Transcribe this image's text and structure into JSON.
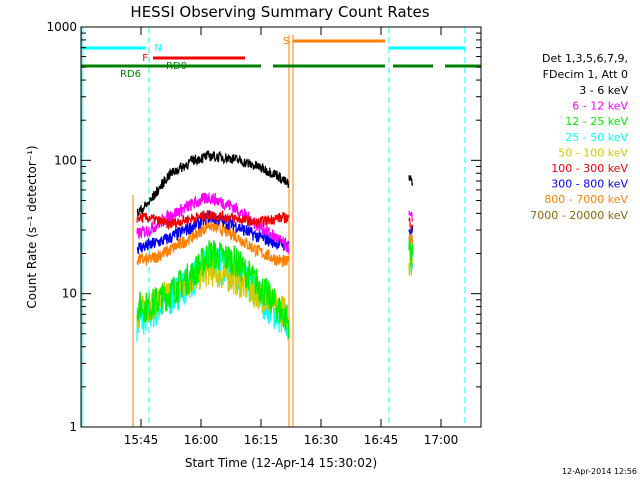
{
  "chart_data": {
    "type": "line",
    "title": "HESSI Observing Summary Count Rates",
    "xlabel": "Start Time (12-Apr-14 15:30:02)",
    "ylabel": "Count Rate (s⁻¹ detector⁻¹)",
    "y_scale": "log",
    "ylim": [
      1,
      1000
    ],
    "xlim": [
      "15:30",
      "17:10"
    ],
    "x_ticks": [
      "15:45",
      "16:00",
      "16:15",
      "16:30",
      "16:45",
      "17:00"
    ],
    "y_ticks": [
      "1",
      "10",
      "100",
      "1000"
    ],
    "legend": {
      "header": [
        "Det 1,3,5,6,7,9,",
        "FDecim 1, Att 0"
      ],
      "placement": "right"
    },
    "series": [
      {
        "name": "3 - 6 keV",
        "color": "#000000",
        "points": [
          [
            "15:44",
            40
          ],
          [
            "15:47",
            48
          ],
          [
            "15:52",
            78
          ],
          [
            "15:58",
            100
          ],
          [
            "16:02",
            108
          ],
          [
            "16:08",
            103
          ],
          [
            "16:14",
            90
          ],
          [
            "16:19",
            78
          ],
          [
            "16:22",
            65
          ],
          [
            "16:52",
            72
          ],
          [
            "16:53",
            70
          ]
        ]
      },
      {
        "name": "6 - 12 keV",
        "color": "#ff00ff",
        "points": [
          [
            "15:44",
            28
          ],
          [
            "15:47",
            30
          ],
          [
            "15:52",
            38
          ],
          [
            "15:58",
            47
          ],
          [
            "16:02",
            53
          ],
          [
            "16:08",
            45
          ],
          [
            "16:14",
            33
          ],
          [
            "16:19",
            26
          ],
          [
            "16:22",
            22
          ],
          [
            "16:52",
            38
          ],
          [
            "16:53",
            36
          ]
        ]
      },
      {
        "name": "12 - 25 keV",
        "color": "#00ee00",
        "points": [
          [
            "15:44",
            8
          ],
          [
            "15:47",
            8
          ],
          [
            "15:52",
            10
          ],
          [
            "15:58",
            14
          ],
          [
            "16:02",
            20
          ],
          [
            "16:08",
            18
          ],
          [
            "16:14",
            12
          ],
          [
            "16:19",
            8
          ],
          [
            "16:22",
            6
          ],
          [
            "16:52",
            22
          ],
          [
            "16:53",
            20
          ]
        ]
      },
      {
        "name": "25 - 50 keV",
        "color": "#00ffff",
        "points": [
          [
            "15:44",
            6
          ],
          [
            "15:47",
            7
          ],
          [
            "15:52",
            9
          ],
          [
            "15:58",
            13
          ],
          [
            "16:02",
            17
          ],
          [
            "16:08",
            15
          ],
          [
            "16:14",
            10
          ],
          [
            "16:19",
            7
          ],
          [
            "16:22",
            6
          ],
          [
            "16:52",
            20
          ],
          [
            "16:53",
            19
          ]
        ]
      },
      {
        "name": "50 - 100 keV",
        "color": "#d4c800",
        "points": [
          [
            "15:44",
            7
          ],
          [
            "15:47",
            8
          ],
          [
            "15:52",
            10
          ],
          [
            "15:58",
            13
          ],
          [
            "16:02",
            15
          ],
          [
            "16:08",
            13
          ],
          [
            "16:14",
            10
          ],
          [
            "16:19",
            8
          ],
          [
            "16:22",
            7
          ],
          [
            "16:52",
            18
          ],
          [
            "16:53",
            17
          ]
        ]
      },
      {
        "name": "100 - 300 keV",
        "color": "#ee0000",
        "points": [
          [
            "15:44",
            37
          ],
          [
            "15:47",
            37
          ],
          [
            "15:52",
            33
          ],
          [
            "15:58",
            37
          ],
          [
            "16:02",
            39
          ],
          [
            "16:08",
            37
          ],
          [
            "16:14",
            34
          ],
          [
            "16:19",
            37
          ],
          [
            "16:22",
            37
          ],
          [
            "16:52",
            35
          ],
          [
            "16:53",
            33
          ]
        ]
      },
      {
        "name": "300 - 800 keV",
        "color": "#0000ee",
        "points": [
          [
            "15:44",
            22
          ],
          [
            "15:47",
            23
          ],
          [
            "15:52",
            26
          ],
          [
            "15:58",
            32
          ],
          [
            "16:02",
            38
          ],
          [
            "16:08",
            33
          ],
          [
            "16:14",
            27
          ],
          [
            "16:19",
            24
          ],
          [
            "16:22",
            23
          ],
          [
            "16:52",
            30
          ],
          [
            "16:53",
            29
          ]
        ]
      },
      {
        "name": "800 - 7000 keV",
        "color": "#ff8000",
        "points": [
          [
            "15:44",
            18
          ],
          [
            "15:47",
            18
          ],
          [
            "15:52",
            21
          ],
          [
            "15:58",
            27
          ],
          [
            "16:02",
            33
          ],
          [
            "16:08",
            28
          ],
          [
            "16:14",
            21
          ],
          [
            "16:19",
            18
          ],
          [
            "16:22",
            17
          ],
          [
            "16:52",
            28
          ],
          [
            "16:53",
            26
          ]
        ]
      },
      {
        "name": "7000 - 20000 keV",
        "color": "#8b6508",
        "points": []
      }
    ],
    "state_bars": [
      {
        "label": "N",
        "color": "#00ffff",
        "segments": [
          [
            "15:30",
            "15:46"
          ],
          [
            "16:47",
            "17:06"
          ]
        ]
      },
      {
        "label": "F",
        "color": "#ee0000",
        "segments": [
          [
            "15:48",
            "16:11"
          ]
        ]
      },
      {
        "label": "RD0",
        "color": "#008000",
        "segments": [
          [
            "15:30",
            "16:15"
          ],
          [
            "16:18",
            "16:46"
          ],
          [
            "16:48",
            "16:58"
          ],
          [
            "17:01",
            "17:10"
          ]
        ]
      },
      {
        "label": "RD6",
        "color": "#008000",
        "segments": []
      },
      {
        "label": "S",
        "color": "#ff8000",
        "segments": [
          [
            "16:23",
            "16:46"
          ]
        ]
      }
    ],
    "dashed_markers": {
      "color": "#00ffff",
      "times": [
        "15:47",
        "16:47",
        "17:06"
      ]
    },
    "gap_markers": {
      "color": "#ff8000",
      "times": [
        "15:43",
        "16:22",
        "16:23"
      ]
    }
  },
  "footer": {
    "timestamp": "12-Apr-2014 12:56"
  }
}
